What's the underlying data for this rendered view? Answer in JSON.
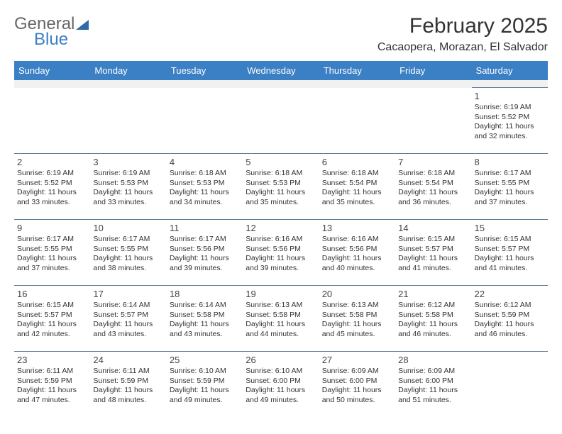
{
  "logo": {
    "line1": "General",
    "line2": "Blue"
  },
  "title": "February 2025",
  "location": "Cacaopera, Morazan, El Salvador",
  "headers": [
    "Sunday",
    "Monday",
    "Tuesday",
    "Wednesday",
    "Thursday",
    "Friday",
    "Saturday"
  ],
  "colors": {
    "header_bg": "#3b7fc4",
    "header_fg": "#ffffff",
    "border": "#5b7a9a",
    "spacer_bg": "#f1f1f1",
    "text": "#333333"
  },
  "weeks": [
    [
      null,
      null,
      null,
      null,
      null,
      null,
      {
        "n": "1",
        "sr": "Sunrise: 6:19 AM",
        "ss": "Sunset: 5:52 PM",
        "dl": "Daylight: 11 hours and 32 minutes."
      }
    ],
    [
      {
        "n": "2",
        "sr": "Sunrise: 6:19 AM",
        "ss": "Sunset: 5:52 PM",
        "dl": "Daylight: 11 hours and 33 minutes."
      },
      {
        "n": "3",
        "sr": "Sunrise: 6:19 AM",
        "ss": "Sunset: 5:53 PM",
        "dl": "Daylight: 11 hours and 33 minutes."
      },
      {
        "n": "4",
        "sr": "Sunrise: 6:18 AM",
        "ss": "Sunset: 5:53 PM",
        "dl": "Daylight: 11 hours and 34 minutes."
      },
      {
        "n": "5",
        "sr": "Sunrise: 6:18 AM",
        "ss": "Sunset: 5:53 PM",
        "dl": "Daylight: 11 hours and 35 minutes."
      },
      {
        "n": "6",
        "sr": "Sunrise: 6:18 AM",
        "ss": "Sunset: 5:54 PM",
        "dl": "Daylight: 11 hours and 35 minutes."
      },
      {
        "n": "7",
        "sr": "Sunrise: 6:18 AM",
        "ss": "Sunset: 5:54 PM",
        "dl": "Daylight: 11 hours and 36 minutes."
      },
      {
        "n": "8",
        "sr": "Sunrise: 6:17 AM",
        "ss": "Sunset: 5:55 PM",
        "dl": "Daylight: 11 hours and 37 minutes."
      }
    ],
    [
      {
        "n": "9",
        "sr": "Sunrise: 6:17 AM",
        "ss": "Sunset: 5:55 PM",
        "dl": "Daylight: 11 hours and 37 minutes."
      },
      {
        "n": "10",
        "sr": "Sunrise: 6:17 AM",
        "ss": "Sunset: 5:55 PM",
        "dl": "Daylight: 11 hours and 38 minutes."
      },
      {
        "n": "11",
        "sr": "Sunrise: 6:17 AM",
        "ss": "Sunset: 5:56 PM",
        "dl": "Daylight: 11 hours and 39 minutes."
      },
      {
        "n": "12",
        "sr": "Sunrise: 6:16 AM",
        "ss": "Sunset: 5:56 PM",
        "dl": "Daylight: 11 hours and 39 minutes."
      },
      {
        "n": "13",
        "sr": "Sunrise: 6:16 AM",
        "ss": "Sunset: 5:56 PM",
        "dl": "Daylight: 11 hours and 40 minutes."
      },
      {
        "n": "14",
        "sr": "Sunrise: 6:15 AM",
        "ss": "Sunset: 5:57 PM",
        "dl": "Daylight: 11 hours and 41 minutes."
      },
      {
        "n": "15",
        "sr": "Sunrise: 6:15 AM",
        "ss": "Sunset: 5:57 PM",
        "dl": "Daylight: 11 hours and 41 minutes."
      }
    ],
    [
      {
        "n": "16",
        "sr": "Sunrise: 6:15 AM",
        "ss": "Sunset: 5:57 PM",
        "dl": "Daylight: 11 hours and 42 minutes."
      },
      {
        "n": "17",
        "sr": "Sunrise: 6:14 AM",
        "ss": "Sunset: 5:57 PM",
        "dl": "Daylight: 11 hours and 43 minutes."
      },
      {
        "n": "18",
        "sr": "Sunrise: 6:14 AM",
        "ss": "Sunset: 5:58 PM",
        "dl": "Daylight: 11 hours and 43 minutes."
      },
      {
        "n": "19",
        "sr": "Sunrise: 6:13 AM",
        "ss": "Sunset: 5:58 PM",
        "dl": "Daylight: 11 hours and 44 minutes."
      },
      {
        "n": "20",
        "sr": "Sunrise: 6:13 AM",
        "ss": "Sunset: 5:58 PM",
        "dl": "Daylight: 11 hours and 45 minutes."
      },
      {
        "n": "21",
        "sr": "Sunrise: 6:12 AM",
        "ss": "Sunset: 5:58 PM",
        "dl": "Daylight: 11 hours and 46 minutes."
      },
      {
        "n": "22",
        "sr": "Sunrise: 6:12 AM",
        "ss": "Sunset: 5:59 PM",
        "dl": "Daylight: 11 hours and 46 minutes."
      }
    ],
    [
      {
        "n": "23",
        "sr": "Sunrise: 6:11 AM",
        "ss": "Sunset: 5:59 PM",
        "dl": "Daylight: 11 hours and 47 minutes."
      },
      {
        "n": "24",
        "sr": "Sunrise: 6:11 AM",
        "ss": "Sunset: 5:59 PM",
        "dl": "Daylight: 11 hours and 48 minutes."
      },
      {
        "n": "25",
        "sr": "Sunrise: 6:10 AM",
        "ss": "Sunset: 5:59 PM",
        "dl": "Daylight: 11 hours and 49 minutes."
      },
      {
        "n": "26",
        "sr": "Sunrise: 6:10 AM",
        "ss": "Sunset: 6:00 PM",
        "dl": "Daylight: 11 hours and 49 minutes."
      },
      {
        "n": "27",
        "sr": "Sunrise: 6:09 AM",
        "ss": "Sunset: 6:00 PM",
        "dl": "Daylight: 11 hours and 50 minutes."
      },
      {
        "n": "28",
        "sr": "Sunrise: 6:09 AM",
        "ss": "Sunset: 6:00 PM",
        "dl": "Daylight: 11 hours and 51 minutes."
      },
      null
    ]
  ]
}
